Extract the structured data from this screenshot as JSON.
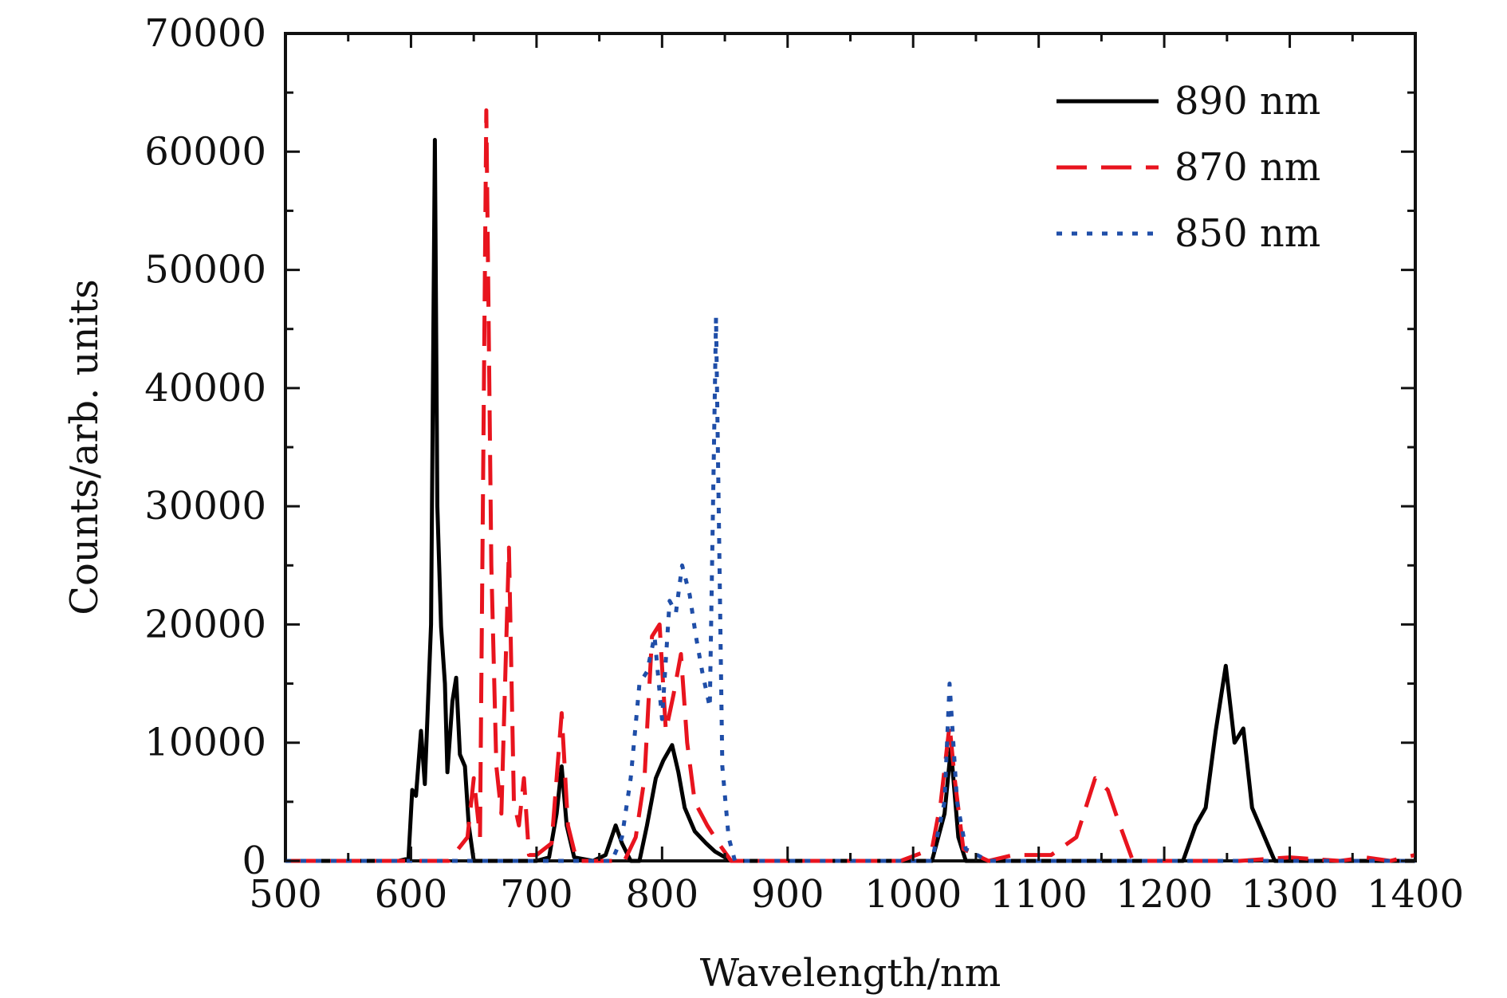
{
  "chart_data": {
    "type": "line",
    "title": "",
    "xlabel": "Wavelength/nm",
    "ylabel": "Counts/arb. units",
    "xlim": [
      500,
      1400
    ],
    "ylim": [
      0,
      70000
    ],
    "xticks": [
      500,
      600,
      700,
      800,
      900,
      1000,
      1100,
      1200,
      1300,
      1400
    ],
    "yticks": [
      0,
      10000,
      20000,
      30000,
      40000,
      50000,
      60000,
      70000
    ],
    "grid": false,
    "legend_position": "top-right",
    "series": [
      {
        "name": "890 nm",
        "color": "#000000",
        "dash": "solid",
        "points": [
          [
            500,
            0
          ],
          [
            590,
            0
          ],
          [
            598,
            200
          ],
          [
            601,
            6000
          ],
          [
            604,
            5500
          ],
          [
            608,
            11000
          ],
          [
            611,
            6500
          ],
          [
            616,
            20000
          ],
          [
            619,
            61000
          ],
          [
            621,
            30000
          ],
          [
            624,
            19800
          ],
          [
            627,
            15000
          ],
          [
            629,
            7500
          ],
          [
            633,
            13500
          ],
          [
            636,
            15500
          ],
          [
            639,
            9000
          ],
          [
            643,
            8000
          ],
          [
            646,
            3000
          ],
          [
            650,
            0
          ],
          [
            700,
            0
          ],
          [
            710,
            300
          ],
          [
            716,
            4000
          ],
          [
            720,
            8000
          ],
          [
            724,
            3000
          ],
          [
            730,
            300
          ],
          [
            745,
            0
          ],
          [
            755,
            500
          ],
          [
            763,
            3000
          ],
          [
            768,
            1500
          ],
          [
            775,
            0
          ],
          [
            782,
            0
          ],
          [
            788,
            3000
          ],
          [
            795,
            7000
          ],
          [
            801,
            8500
          ],
          [
            808,
            9800
          ],
          [
            813,
            7500
          ],
          [
            818,
            4500
          ],
          [
            826,
            2500
          ],
          [
            835,
            1500
          ],
          [
            842,
            800
          ],
          [
            855,
            0
          ],
          [
            1000,
            0
          ],
          [
            1015,
            0
          ],
          [
            1025,
            4000
          ],
          [
            1030,
            9500
          ],
          [
            1036,
            2000
          ],
          [
            1042,
            0
          ],
          [
            1200,
            0
          ],
          [
            1215,
            0
          ],
          [
            1225,
            3000
          ],
          [
            1233,
            4500
          ],
          [
            1241,
            11000
          ],
          [
            1249,
            16500
          ],
          [
            1256,
            10000
          ],
          [
            1263,
            11200
          ],
          [
            1270,
            4500
          ],
          [
            1278,
            2500
          ],
          [
            1288,
            0
          ],
          [
            1400,
            0
          ]
        ]
      },
      {
        "name": "870 nm",
        "color": "#e8141e",
        "dash": "dashed",
        "points": [
          [
            500,
            0
          ],
          [
            630,
            0
          ],
          [
            645,
            2000
          ],
          [
            650,
            7000
          ],
          [
            655,
            2000
          ],
          [
            660,
            63500
          ],
          [
            664,
            25000
          ],
          [
            668,
            8000
          ],
          [
            672,
            4000
          ],
          [
            678,
            26500
          ],
          [
            682,
            5000
          ],
          [
            686,
            3000
          ],
          [
            690,
            7000
          ],
          [
            694,
            500
          ],
          [
            700,
            500
          ],
          [
            712,
            1500
          ],
          [
            720,
            12500
          ],
          [
            725,
            3000
          ],
          [
            732,
            0
          ],
          [
            770,
            0
          ],
          [
            779,
            2000
          ],
          [
            786,
            7000
          ],
          [
            792,
            19000
          ],
          [
            798,
            20000
          ],
          [
            803,
            11000
          ],
          [
            809,
            14000
          ],
          [
            815,
            17500
          ],
          [
            820,
            10000
          ],
          [
            826,
            5000
          ],
          [
            836,
            3000
          ],
          [
            845,
            1500
          ],
          [
            855,
            0
          ],
          [
            990,
            0
          ],
          [
            1015,
            1000
          ],
          [
            1022,
            5000
          ],
          [
            1029,
            11500
          ],
          [
            1033,
            7000
          ],
          [
            1040,
            1000
          ],
          [
            1060,
            0
          ],
          [
            1080,
            500
          ],
          [
            1110,
            500
          ],
          [
            1130,
            2000
          ],
          [
            1145,
            7000
          ],
          [
            1155,
            6000
          ],
          [
            1163,
            3500
          ],
          [
            1175,
            0
          ],
          [
            1230,
            0
          ],
          [
            1260,
            0
          ],
          [
            1300,
            300
          ],
          [
            1340,
            0
          ],
          [
            1360,
            300
          ],
          [
            1380,
            0
          ],
          [
            1400,
            500
          ]
        ]
      },
      {
        "name": "850 nm",
        "color": "#1f4ea8",
        "dash": "dotted",
        "points": [
          [
            500,
            0
          ],
          [
            760,
            0
          ],
          [
            768,
            2000
          ],
          [
            775,
            7000
          ],
          [
            782,
            15000
          ],
          [
            788,
            16000
          ],
          [
            794,
            19000
          ],
          [
            800,
            12000
          ],
          [
            806,
            22000
          ],
          [
            811,
            21000
          ],
          [
            816,
            25000
          ],
          [
            822,
            22500
          ],
          [
            827,
            19000
          ],
          [
            832,
            16000
          ],
          [
            838,
            13000
          ],
          [
            843,
            46000
          ],
          [
            848,
            8000
          ],
          [
            853,
            2000
          ],
          [
            858,
            0
          ],
          [
            1015,
            0
          ],
          [
            1025,
            5000
          ],
          [
            1029,
            15000
          ],
          [
            1035,
            5000
          ],
          [
            1042,
            1000
          ],
          [
            1060,
            0
          ],
          [
            1400,
            0
          ]
        ]
      }
    ]
  }
}
